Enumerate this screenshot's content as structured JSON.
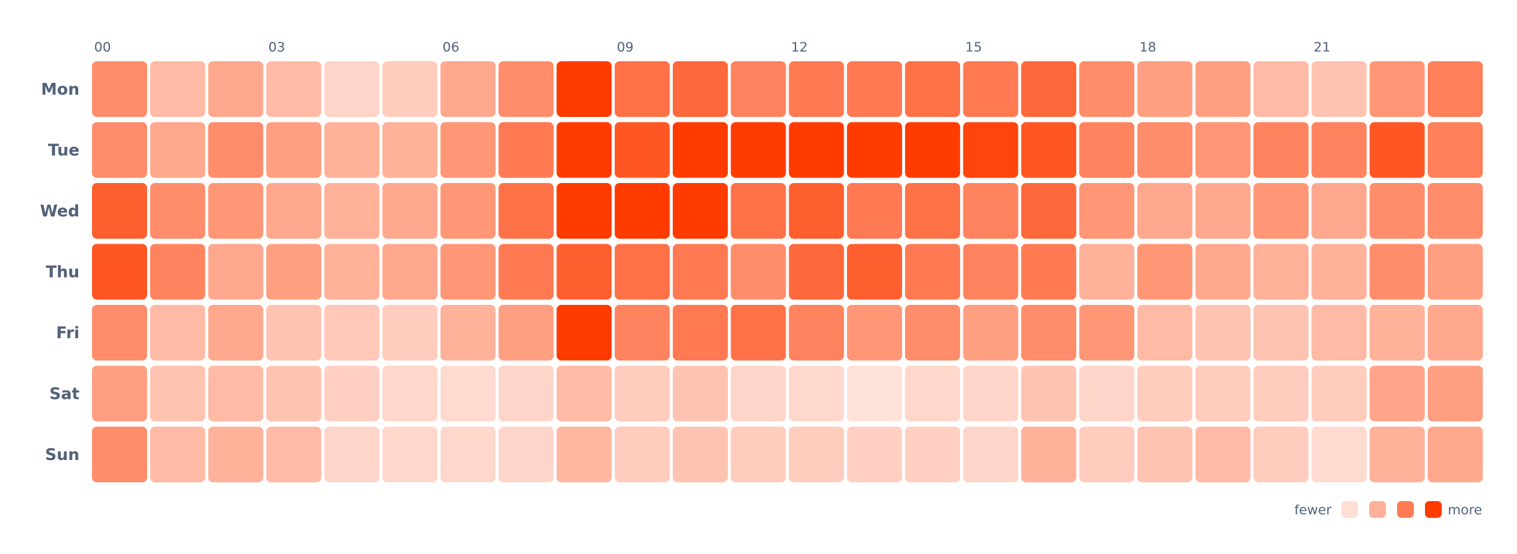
{
  "chart_data": {
    "type": "heatmap",
    "title": "",
    "x_ticks": [
      "00",
      "03",
      "06",
      "09",
      "12",
      "15",
      "18",
      "21"
    ],
    "x_tick_step": 3,
    "hours": [
      "00",
      "01",
      "02",
      "03",
      "04",
      "05",
      "06",
      "07",
      "08",
      "09",
      "10",
      "11",
      "12",
      "13",
      "14",
      "15",
      "16",
      "17",
      "18",
      "19",
      "20",
      "21",
      "22",
      "23"
    ],
    "days": [
      "Mon",
      "Tue",
      "Wed",
      "Thu",
      "Fri",
      "Sat",
      "Sun"
    ],
    "values": [
      [
        0.55,
        0.3,
        0.4,
        0.3,
        0.15,
        0.2,
        0.4,
        0.55,
        1.0,
        0.7,
        0.75,
        0.6,
        0.65,
        0.65,
        0.7,
        0.65,
        0.75,
        0.55,
        0.45,
        0.45,
        0.3,
        0.25,
        0.5,
        0.62
      ],
      [
        0.55,
        0.4,
        0.55,
        0.45,
        0.35,
        0.35,
        0.5,
        0.65,
        1.0,
        0.85,
        1.0,
        1.0,
        1.0,
        1.0,
        1.0,
        0.95,
        0.85,
        0.6,
        0.55,
        0.5,
        0.6,
        0.6,
        0.85,
        0.62
      ],
      [
        0.8,
        0.55,
        0.5,
        0.4,
        0.35,
        0.4,
        0.5,
        0.7,
        1.0,
        1.0,
        1.0,
        0.7,
        0.8,
        0.65,
        0.7,
        0.6,
        0.75,
        0.5,
        0.4,
        0.4,
        0.5,
        0.4,
        0.55,
        0.55
      ],
      [
        0.85,
        0.6,
        0.4,
        0.45,
        0.35,
        0.4,
        0.5,
        0.65,
        0.8,
        0.7,
        0.65,
        0.55,
        0.75,
        0.8,
        0.65,
        0.6,
        0.65,
        0.35,
        0.5,
        0.4,
        0.35,
        0.35,
        0.55,
        0.45
      ],
      [
        0.55,
        0.3,
        0.4,
        0.25,
        0.22,
        0.2,
        0.35,
        0.45,
        1.0,
        0.6,
        0.65,
        0.7,
        0.6,
        0.5,
        0.55,
        0.45,
        0.55,
        0.5,
        0.3,
        0.25,
        0.25,
        0.3,
        0.35,
        0.4
      ],
      [
        0.45,
        0.25,
        0.3,
        0.25,
        0.18,
        0.14,
        0.12,
        0.15,
        0.3,
        0.2,
        0.25,
        0.15,
        0.13,
        0.08,
        0.14,
        0.15,
        0.25,
        0.15,
        0.2,
        0.2,
        0.2,
        0.2,
        0.42,
        0.45
      ],
      [
        0.55,
        0.3,
        0.35,
        0.3,
        0.15,
        0.14,
        0.14,
        0.15,
        0.32,
        0.2,
        0.25,
        0.2,
        0.2,
        0.18,
        0.18,
        0.15,
        0.35,
        0.2,
        0.25,
        0.3,
        0.2,
        0.12,
        0.35,
        0.4
      ]
    ],
    "color_scale": {
      "low": "#fff0ec",
      "high": "#ff3b00"
    },
    "legend": {
      "position": "bottom-right",
      "low_label": "fewer",
      "high_label": "more",
      "swatch_levels": [
        0.1,
        0.35,
        0.65,
        1.0
      ]
    }
  }
}
